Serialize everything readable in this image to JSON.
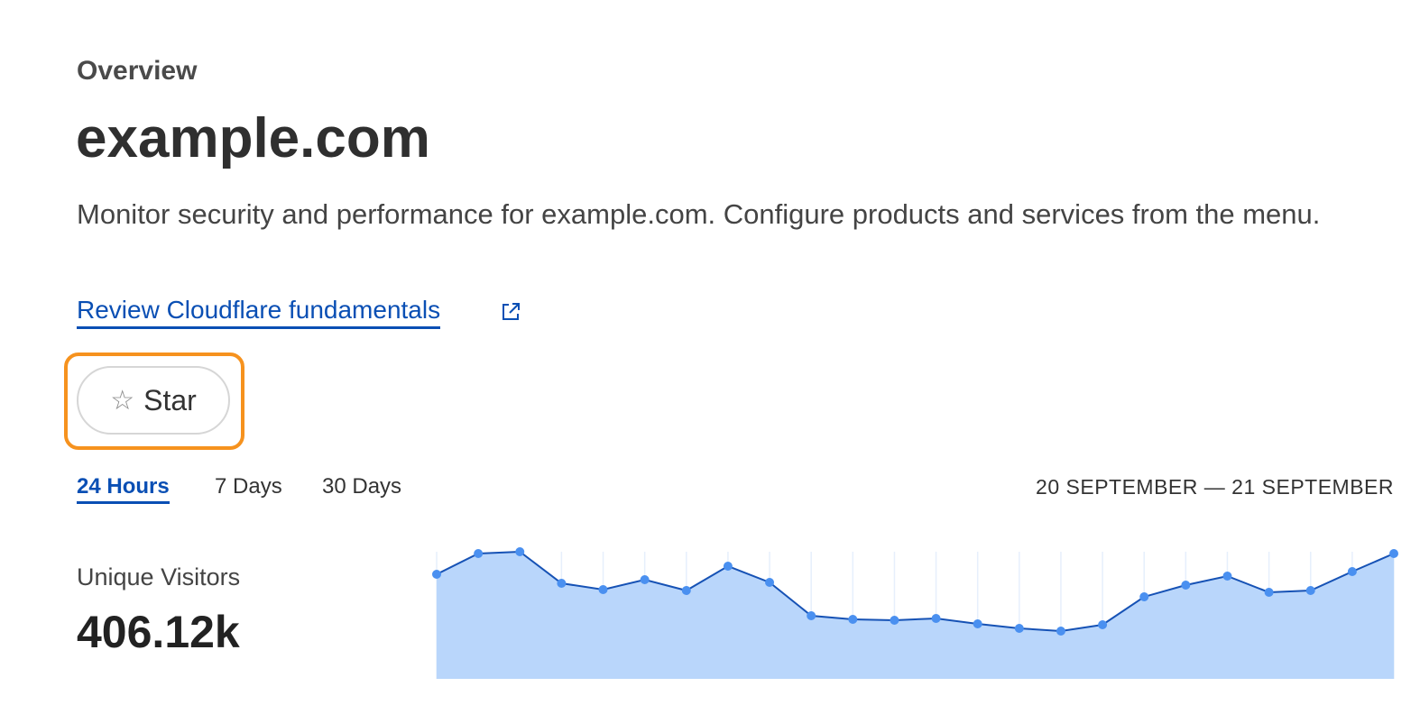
{
  "header": {
    "eyebrow": "Overview",
    "title": "example.com",
    "description": "Monitor security and performance for example.com. Configure products and services from the menu.",
    "link_label": "Review Cloudflare fundamentals",
    "link_icon": "external-link-icon"
  },
  "star_button": {
    "label": "Star",
    "icon": "star-outline-icon",
    "focus_color": "#f6921e"
  },
  "time_tabs": {
    "items": [
      {
        "label": "24 Hours",
        "active": true
      },
      {
        "label": "7 Days",
        "active": false
      },
      {
        "label": "30 Days",
        "active": false
      }
    ],
    "range": "20 SEPTEMBER — 21 SEPTEMBER"
  },
  "metric": {
    "label": "Unique Visitors",
    "value": "406.12k"
  },
  "colors": {
    "accent": "#0a4fb4",
    "line": "#1652b5",
    "fill": "#b9d6fb",
    "point": "#4a90f0"
  },
  "chart_data": {
    "type": "area",
    "points": 24,
    "values": [
      116,
      139,
      141,
      106,
      99,
      110,
      98,
      125,
      107,
      70,
      66,
      65,
      67,
      61,
      56,
      53,
      60,
      91,
      104,
      114,
      96,
      98,
      119,
      139
    ],
    "grid": "vertical",
    "legend": "none"
  }
}
